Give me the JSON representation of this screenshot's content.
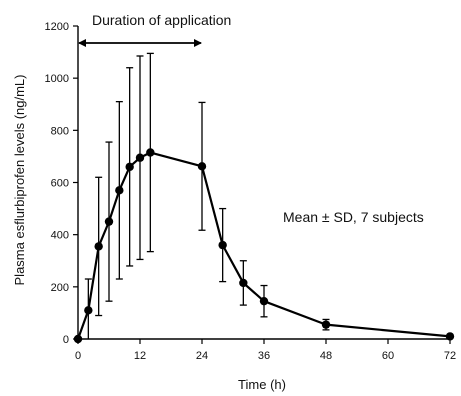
{
  "chart_data": {
    "type": "line",
    "ylabel": "Plasma esflurbiprofen levels (ng/mL)",
    "xlabel": "Time (h)",
    "xlim": [
      0,
      72
    ],
    "ylim": [
      0,
      1200
    ],
    "x_ticks": [
      0,
      12,
      24,
      36,
      48,
      60,
      72
    ],
    "y_ticks": [
      0,
      200,
      400,
      600,
      800,
      1000,
      1200
    ],
    "grid": false,
    "series": [
      {
        "x": [
          0,
          2,
          4,
          6,
          8,
          10,
          12,
          14,
          24,
          28,
          32,
          36,
          48,
          72
        ],
        "y": [
          0,
          110,
          355,
          450,
          570,
          660,
          695,
          715,
          662,
          360,
          215,
          145,
          55,
          10
        ],
        "sd": [
          0,
          120,
          265,
          305,
          340,
          380,
          390,
          380,
          245,
          140,
          85,
          60,
          20,
          5
        ]
      }
    ],
    "annotations": {
      "duration_label": "Duration of application",
      "duration_range": [
        0,
        24
      ],
      "stats_note": "Mean ± SD, 7 subjects"
    }
  }
}
